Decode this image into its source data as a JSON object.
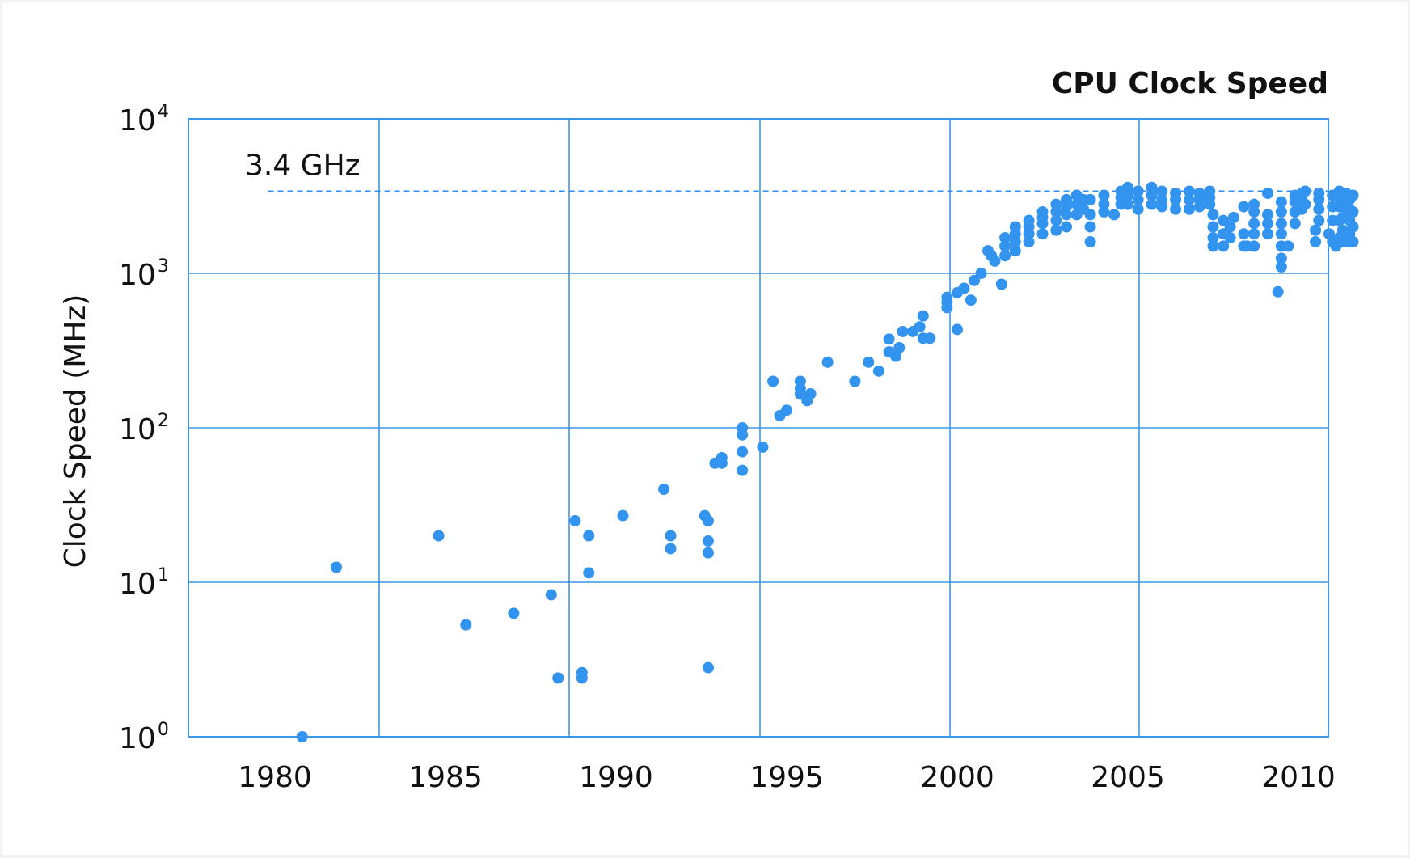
{
  "chart_data": {
    "type": "scatter",
    "title": "CPU Clock Speed",
    "ylabel": "Clock Speed (MHz)",
    "xlabel": "",
    "x_scale": "linear",
    "y_scale": "log",
    "xlim": [
      1977.7,
      2011.2
    ],
    "ylim": [
      1,
      10000
    ],
    "x_ticks": [
      "1980",
      "1985",
      "1990",
      "1995",
      "2000",
      "2005",
      "2010"
    ],
    "y_ticks": [
      {
        "base": "10",
        "exp": "4",
        "value": 10000
      },
      {
        "base": "10",
        "exp": "3",
        "value": 1000
      },
      {
        "base": "10",
        "exp": "2",
        "value": 100
      },
      {
        "base": "10",
        "exp": "1",
        "value": 10
      },
      {
        "base": "10",
        "exp": "0",
        "value": 1
      }
    ],
    "reference_line": {
      "label": "3.4 GHz",
      "value": 3400,
      "style": "dashed",
      "x_start": 1979.8
    },
    "grid": true,
    "point_color": "#3394f0",
    "grid_color": "#3d96e8",
    "points": [
      [
        1980.8,
        1
      ],
      [
        1981.8,
        12.5
      ],
      [
        1984.8,
        20
      ],
      [
        1985.6,
        5.3
      ],
      [
        1987.0,
        6.3
      ],
      [
        1988.1,
        8.3
      ],
      [
        1988.3,
        2.4
      ],
      [
        1988.8,
        25
      ],
      [
        1989.0,
        2.4
      ],
      [
        1989.0,
        2.6
      ],
      [
        1989.2,
        20
      ],
      [
        1989.2,
        11.5
      ],
      [
        1990.2,
        27
      ],
      [
        1991.4,
        40
      ],
      [
        1991.6,
        20
      ],
      [
        1991.6,
        16.5
      ],
      [
        1992.6,
        27
      ],
      [
        1992.7,
        25
      ],
      [
        1992.7,
        18.5
      ],
      [
        1992.7,
        15.5
      ],
      [
        1992.7,
        2.8
      ],
      [
        1992.9,
        59
      ],
      [
        1993.1,
        59
      ],
      [
        1993.1,
        64
      ],
      [
        1993.7,
        53
      ],
      [
        1993.7,
        70
      ],
      [
        1993.7,
        90
      ],
      [
        1993.7,
        100
      ],
      [
        1994.3,
        75
      ],
      [
        1994.6,
        200
      ],
      [
        1994.8,
        120
      ],
      [
        1995.0,
        130
      ],
      [
        1995.4,
        165
      ],
      [
        1995.4,
        180
      ],
      [
        1995.4,
        200
      ],
      [
        1995.6,
        150
      ],
      [
        1995.7,
        166
      ],
      [
        1996.2,
        266
      ],
      [
        1997.0,
        200
      ],
      [
        1997.4,
        266
      ],
      [
        1997.7,
        233
      ],
      [
        1998.0,
        375
      ],
      [
        1998.0,
        310
      ],
      [
        1998.2,
        290
      ],
      [
        1998.3,
        330
      ],
      [
        1998.4,
        420
      ],
      [
        1998.7,
        420
      ],
      [
        1998.9,
        450
      ],
      [
        1999.0,
        380
      ],
      [
        1999.0,
        530
      ],
      [
        1999.2,
        380
      ],
      [
        1999.7,
        600
      ],
      [
        1999.7,
        650
      ],
      [
        1999.7,
        700
      ],
      [
        2000.0,
        433
      ],
      [
        2000.0,
        750
      ],
      [
        2000.2,
        800
      ],
      [
        2000.4,
        670
      ],
      [
        2000.5,
        900
      ],
      [
        2000.7,
        1000
      ],
      [
        2000.9,
        1400
      ],
      [
        2001.0,
        1300
      ],
      [
        2001.1,
        1200
      ],
      [
        2001.3,
        850
      ],
      [
        2001.4,
        1300
      ],
      [
        2001.4,
        1500
      ],
      [
        2001.4,
        1700
      ],
      [
        2001.7,
        1400
      ],
      [
        2001.7,
        1600
      ],
      [
        2001.7,
        1800
      ],
      [
        2001.7,
        2000
      ],
      [
        2002.1,
        1600
      ],
      [
        2002.1,
        1800
      ],
      [
        2002.1,
        2000
      ],
      [
        2002.1,
        2200
      ],
      [
        2002.5,
        1800
      ],
      [
        2002.5,
        2100
      ],
      [
        2002.5,
        2300
      ],
      [
        2002.5,
        2500
      ],
      [
        2002.9,
        1900
      ],
      [
        2002.9,
        2200
      ],
      [
        2002.9,
        2500
      ],
      [
        2002.9,
        2800
      ],
      [
        2003.2,
        2000
      ],
      [
        2003.2,
        2400
      ],
      [
        2003.2,
        2700
      ],
      [
        2003.2,
        3000
      ],
      [
        2003.5,
        2400
      ],
      [
        2003.5,
        2800
      ],
      [
        2003.5,
        3200
      ],
      [
        2003.7,
        2600
      ],
      [
        2003.7,
        3000
      ],
      [
        2003.9,
        1600
      ],
      [
        2003.9,
        2000
      ],
      [
        2003.9,
        2400
      ],
      [
        2003.9,
        3000
      ],
      [
        2004.3,
        2500
      ],
      [
        2004.3,
        2800
      ],
      [
        2004.3,
        3200
      ],
      [
        2004.6,
        2400
      ],
      [
        2004.8,
        2800
      ],
      [
        2004.8,
        3100
      ],
      [
        2004.8,
        3400
      ],
      [
        2005.0,
        2800
      ],
      [
        2005.0,
        3200
      ],
      [
        2005.0,
        3600
      ],
      [
        2005.3,
        2600
      ],
      [
        2005.3,
        3000
      ],
      [
        2005.3,
        3400
      ],
      [
        2005.7,
        2800
      ],
      [
        2005.7,
        3200
      ],
      [
        2005.7,
        3600
      ],
      [
        2006.0,
        2700
      ],
      [
        2006.0,
        3000
      ],
      [
        2006.0,
        3400
      ],
      [
        2006.4,
        2600
      ],
      [
        2006.4,
        3000
      ],
      [
        2006.4,
        3300
      ],
      [
        2006.8,
        2600
      ],
      [
        2006.8,
        3000
      ],
      [
        2006.8,
        3400
      ],
      [
        2007.1,
        2700
      ],
      [
        2007.1,
        3000
      ],
      [
        2007.1,
        3300
      ],
      [
        2007.4,
        2800
      ],
      [
        2007.4,
        3100
      ],
      [
        2007.4,
        3400
      ],
      [
        2007.5,
        1500
      ],
      [
        2007.5,
        1700
      ],
      [
        2007.5,
        2000
      ],
      [
        2007.5,
        2400
      ],
      [
        2007.8,
        1500
      ],
      [
        2007.8,
        1800
      ],
      [
        2007.8,
        2200
      ],
      [
        2008.0,
        1700
      ],
      [
        2008.0,
        2000
      ],
      [
        2008.1,
        2300
      ],
      [
        2008.4,
        1500
      ],
      [
        2008.4,
        1800
      ],
      [
        2008.4,
        2700
      ],
      [
        2008.5,
        1500
      ],
      [
        2008.7,
        1500
      ],
      [
        2008.7,
        1800
      ],
      [
        2008.7,
        2100
      ],
      [
        2008.7,
        2500
      ],
      [
        2008.7,
        2800
      ],
      [
        2009.1,
        1800
      ],
      [
        2009.1,
        2100
      ],
      [
        2009.1,
        2400
      ],
      [
        2009.1,
        3300
      ],
      [
        2009.4,
        760
      ],
      [
        2009.5,
        1100
      ],
      [
        2009.5,
        1250
      ],
      [
        2009.5,
        1500
      ],
      [
        2009.5,
        1800
      ],
      [
        2009.5,
        2100
      ],
      [
        2009.5,
        2500
      ],
      [
        2009.5,
        2900
      ],
      [
        2009.7,
        1500
      ],
      [
        2009.9,
        2100
      ],
      [
        2009.9,
        2500
      ],
      [
        2009.9,
        2900
      ],
      [
        2009.9,
        3200
      ],
      [
        2010.1,
        2600
      ],
      [
        2010.1,
        3000
      ],
      [
        2010.1,
        3300
      ],
      [
        2010.2,
        2800
      ],
      [
        2010.2,
        3400
      ],
      [
        2010.5,
        1600
      ],
      [
        2010.5,
        1900
      ],
      [
        2010.6,
        2200
      ],
      [
        2010.6,
        2600
      ],
      [
        2010.6,
        3000
      ],
      [
        2010.6,
        3300
      ],
      [
        2010.9,
        1800
      ],
      [
        2011.0,
        1600
      ],
      [
        2011.0,
        2200
      ],
      [
        2011.0,
        2700
      ],
      [
        2011.0,
        3200
      ],
      [
        2011.1,
        1500
      ],
      [
        2011.2,
        1700
      ],
      [
        2011.2,
        2200
      ],
      [
        2011.2,
        2700
      ],
      [
        2011.2,
        3100
      ],
      [
        2011.2,
        3400
      ],
      [
        2011.3,
        1600
      ],
      [
        2011.3,
        1900
      ],
      [
        2011.3,
        2300
      ],
      [
        2011.4,
        2600
      ],
      [
        2011.4,
        3000
      ],
      [
        2011.4,
        3300
      ],
      [
        2011.5,
        1600
      ],
      [
        2011.5,
        1800
      ],
      [
        2011.5,
        2200
      ],
      [
        2011.5,
        2600
      ],
      [
        2011.5,
        3000
      ],
      [
        2011.6,
        1600
      ],
      [
        2011.6,
        2000
      ],
      [
        2011.6,
        2500
      ],
      [
        2011.6,
        3200
      ]
    ]
  }
}
